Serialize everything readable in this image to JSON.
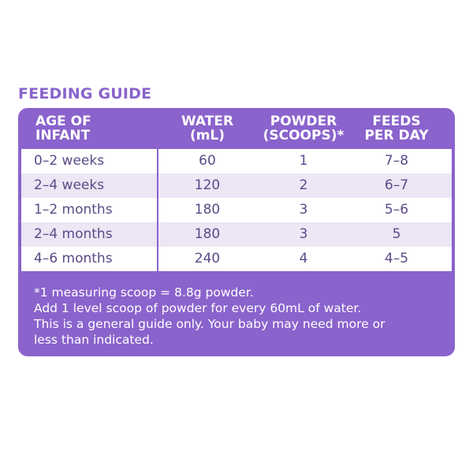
{
  "title": "FEEDING GUIDE",
  "colors": {
    "accent": "#8a63cc",
    "row_alt": "#ece6f5",
    "body_text": "#5b4a86"
  },
  "table": {
    "headers": [
      "AGE OF\nINFANT",
      "WATER\n(mL)",
      "POWDER\n(SCOOPS)*",
      "FEEDS\nPER DAY"
    ],
    "rows": [
      {
        "age": "0–2 weeks",
        "water": "60",
        "powder": "1",
        "feeds": "7–8"
      },
      {
        "age": "2–4 weeks",
        "water": "120",
        "powder": "2",
        "feeds": "6–7"
      },
      {
        "age": "1–2 months",
        "water": "180",
        "powder": "3",
        "feeds": "5–6"
      },
      {
        "age": "2–4 months",
        "water": "180",
        "powder": "3",
        "feeds": "5"
      },
      {
        "age": "4–6 months",
        "water": "240",
        "powder": "4",
        "feeds": "4–5"
      }
    ]
  },
  "footer": {
    "lines": [
      "*1 measuring scoop = 8.8g powder.",
      "Add 1 level scoop of powder for every 60mL of water.",
      "This is a general guide only. Your baby may need more or",
      "less than indicated."
    ]
  }
}
